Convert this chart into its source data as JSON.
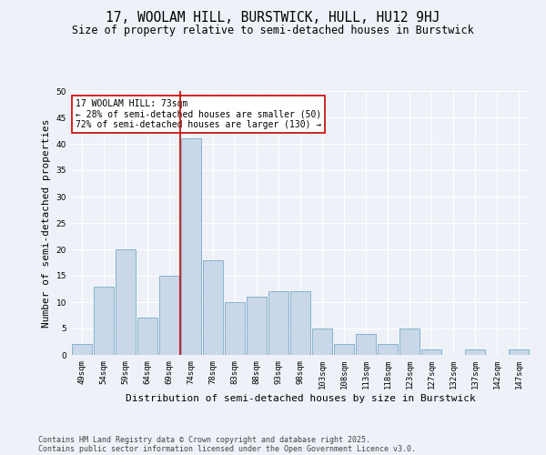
{
  "title_line1": "17, WOOLAM HILL, BURSTWICK, HULL, HU12 9HJ",
  "title_line2": "Size of property relative to semi-detached houses in Burstwick",
  "xlabel": "Distribution of semi-detached houses by size in Burstwick",
  "ylabel": "Number of semi-detached properties",
  "categories": [
    "49sqm",
    "54sqm",
    "59sqm",
    "64sqm",
    "69sqm",
    "74sqm",
    "78sqm",
    "83sqm",
    "88sqm",
    "93sqm",
    "98sqm",
    "103sqm",
    "108sqm",
    "113sqm",
    "118sqm",
    "123sqm",
    "127sqm",
    "132sqm",
    "137sqm",
    "142sqm",
    "147sqm"
  ],
  "values": [
    2,
    13,
    20,
    7,
    15,
    41,
    18,
    10,
    11,
    12,
    12,
    5,
    2,
    4,
    2,
    5,
    1,
    0,
    1,
    0,
    1
  ],
  "bar_color": "#c8d8e8",
  "bar_edge_color": "#7aaac8",
  "highlight_line_index": 5,
  "annotation_title": "17 WOOLAM HILL: 73sqm",
  "annotation_line1": "← 28% of semi-detached houses are smaller (50)",
  "annotation_line2": "72% of semi-detached houses are larger (130) →",
  "annotation_box_color": "#ffffff",
  "annotation_box_edge": "#cc0000",
  "highlight_line_color": "#cc0000",
  "ylim": [
    0,
    50
  ],
  "yticks": [
    0,
    5,
    10,
    15,
    20,
    25,
    30,
    35,
    40,
    45,
    50
  ],
  "background_color": "#eef2f8",
  "grid_color": "#ffffff",
  "footer_line1": "Contains HM Land Registry data © Crown copyright and database right 2025.",
  "footer_line2": "Contains public sector information licensed under the Open Government Licence v3.0.",
  "title_fontsize": 10.5,
  "subtitle_fontsize": 8.5,
  "axis_label_fontsize": 8,
  "tick_fontsize": 6.5,
  "annotation_fontsize": 7,
  "footer_fontsize": 6
}
